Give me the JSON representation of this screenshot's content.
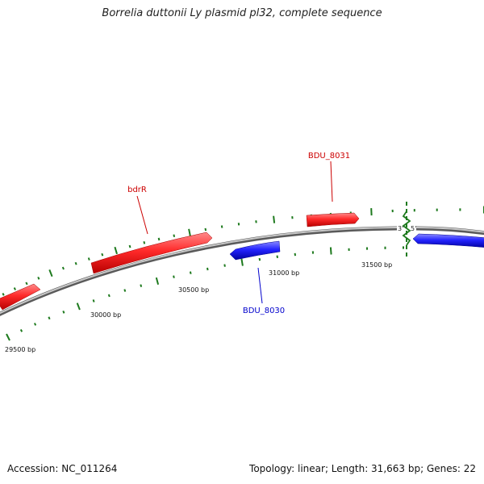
{
  "title": "Borrelia duttonii Ly plasmid pl32, complete sequence",
  "footer": {
    "accession": "Accession: NC_011264",
    "topology": "Topology: linear; Length: 31,663 bp; Genes: 22"
  },
  "colors": {
    "forward_gene": "#ee1111",
    "reverse_gene": "#1010dd",
    "backbone": "#8a8a8a",
    "ticks": "#1e7a1e"
  },
  "ruler": {
    "tick_labels": [
      "29500 bp",
      "30000 bp",
      "30500 bp",
      "31000 bp",
      "31500 bp"
    ]
  },
  "ends": {
    "left": "3'",
    "right": "5'"
  },
  "genes": [
    {
      "label": "",
      "strand": "forward"
    },
    {
      "label": "bdrR",
      "strand": "forward"
    },
    {
      "label": "BDU_8030",
      "strand": "reverse"
    },
    {
      "label": "BDU_8031",
      "strand": "forward"
    },
    {
      "label": "",
      "strand": "reverse"
    }
  ]
}
